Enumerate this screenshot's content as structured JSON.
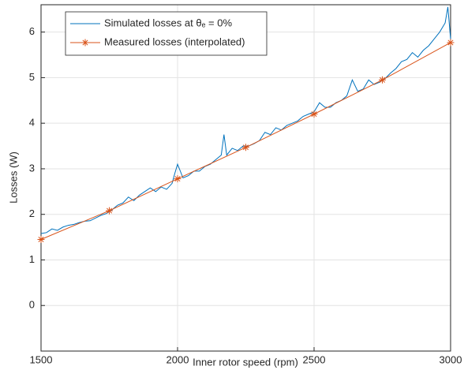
{
  "chart_data": {
    "type": "line",
    "xlabel": "Inner rotor speed (rpm)",
    "ylabel": "Losses (W)",
    "xlim": [
      1500,
      3000
    ],
    "xticks": [
      1500,
      2000,
      2500,
      3000
    ],
    "ylim": [
      -1,
      6.6
    ],
    "yticks": [
      0,
      1,
      2,
      3,
      4,
      5,
      6
    ],
    "grid": true,
    "legend": "upper left",
    "series": [
      {
        "name": "Simulated losses at θₑ = 0%",
        "color": "#0072bd",
        "marker": "none",
        "x": [
          1500,
          1520,
          1540,
          1560,
          1580,
          1600,
          1620,
          1640,
          1660,
          1680,
          1700,
          1720,
          1740,
          1760,
          1780,
          1800,
          1820,
          1840,
          1860,
          1880,
          1900,
          1920,
          1940,
          1960,
          1980,
          1990,
          2000,
          2020,
          2040,
          2060,
          2080,
          2100,
          2120,
          2140,
          2160,
          2170,
          2180,
          2200,
          2220,
          2240,
          2260,
          2280,
          2300,
          2320,
          2340,
          2360,
          2380,
          2400,
          2420,
          2440,
          2460,
          2480,
          2500,
          2520,
          2540,
          2560,
          2580,
          2600,
          2620,
          2640,
          2660,
          2680,
          2700,
          2720,
          2740,
          2760,
          2780,
          2800,
          2820,
          2840,
          2860,
          2880,
          2900,
          2920,
          2940,
          2960,
          2980,
          2990,
          3000
        ],
        "values": [
          1.58,
          1.6,
          1.68,
          1.65,
          1.72,
          1.76,
          1.78,
          1.82,
          1.85,
          1.86,
          1.92,
          1.98,
          2.02,
          2.1,
          2.2,
          2.25,
          2.38,
          2.3,
          2.42,
          2.5,
          2.58,
          2.5,
          2.6,
          2.55,
          2.68,
          2.9,
          3.1,
          2.8,
          2.85,
          2.95,
          2.95,
          3.05,
          3.1,
          3.2,
          3.3,
          3.75,
          3.3,
          3.45,
          3.4,
          3.5,
          3.5,
          3.55,
          3.62,
          3.8,
          3.75,
          3.9,
          3.85,
          3.95,
          4.0,
          4.05,
          4.15,
          4.2,
          4.25,
          4.45,
          4.35,
          4.35,
          4.45,
          4.5,
          4.6,
          4.95,
          4.7,
          4.75,
          4.95,
          4.85,
          4.9,
          4.98,
          5.1,
          5.2,
          5.35,
          5.4,
          5.55,
          5.45,
          5.6,
          5.7,
          5.85,
          6.0,
          6.2,
          6.55,
          5.85
        ]
      },
      {
        "name": "Measured losses (interpolated)",
        "color": "#d95319",
        "marker": "asterisk",
        "x": [
          1500,
          1750,
          2000,
          2250,
          2500,
          2750,
          3000
        ],
        "values": [
          1.45,
          2.08,
          2.78,
          3.47,
          4.2,
          4.95,
          5.77
        ]
      }
    ]
  }
}
